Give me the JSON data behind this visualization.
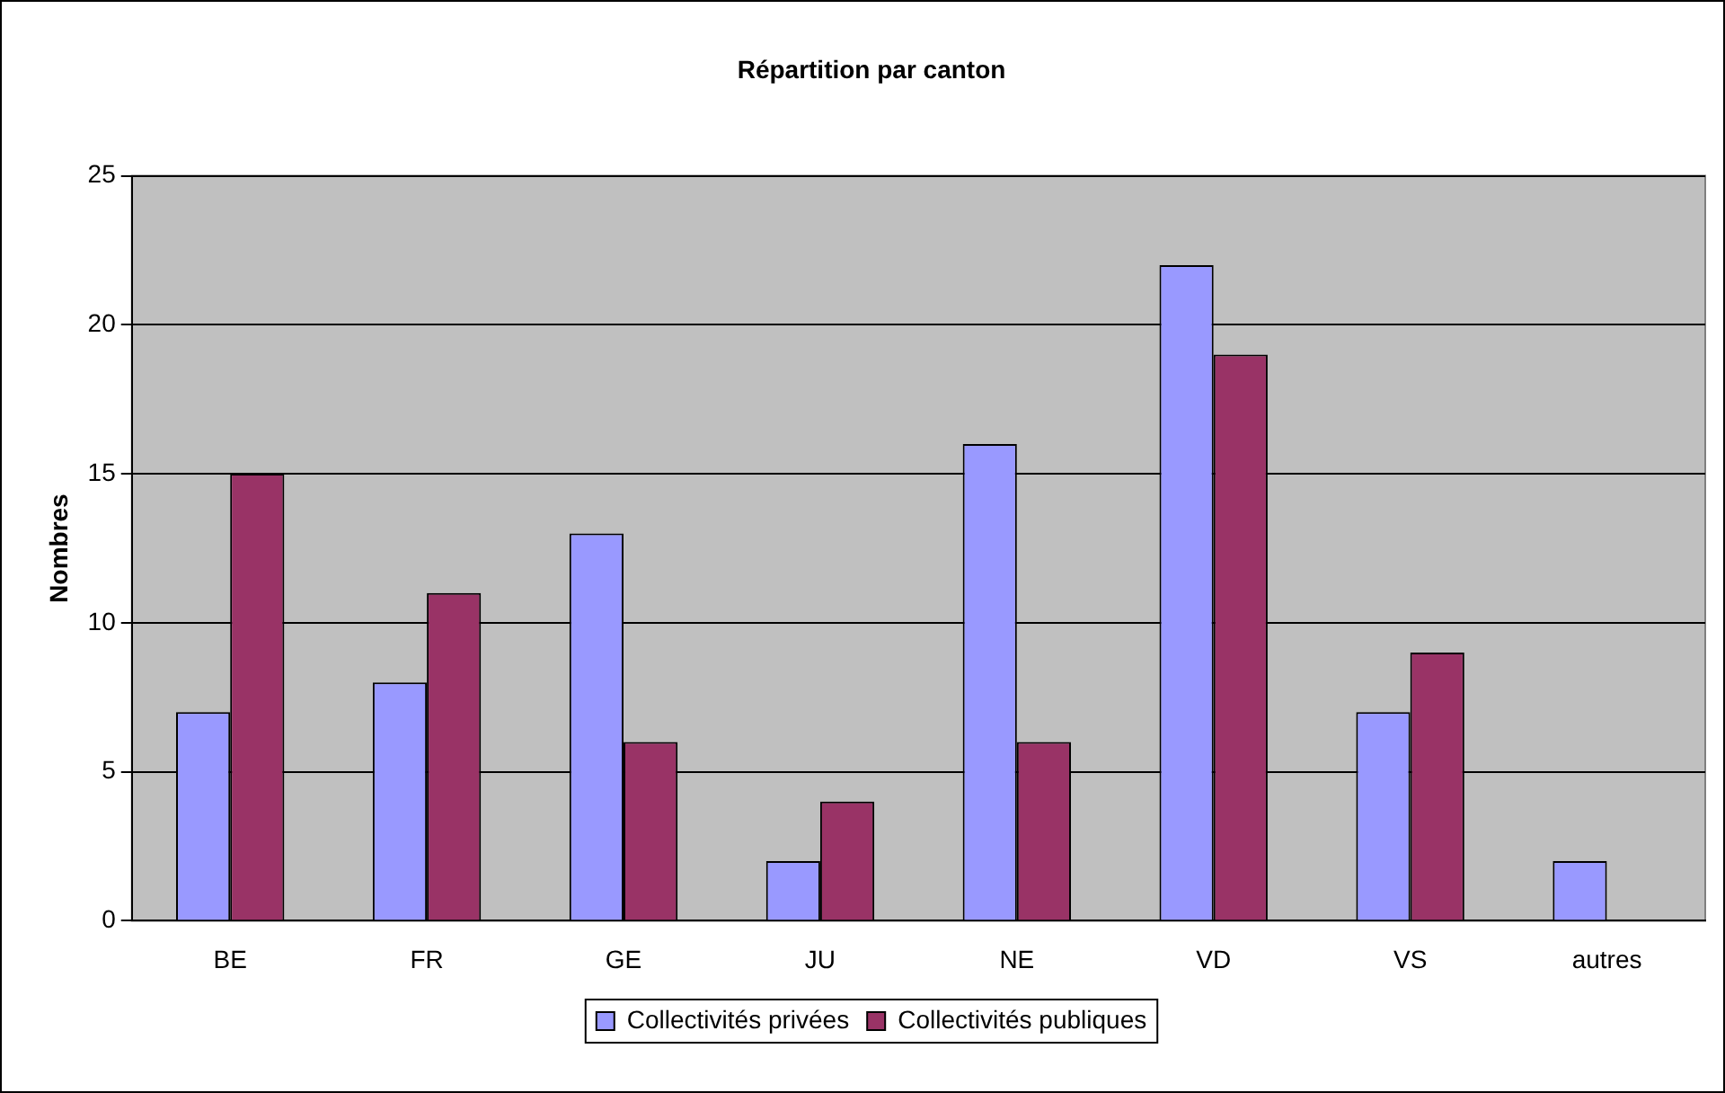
{
  "chart_data": {
    "type": "bar",
    "title": "Répartition par canton",
    "ylabel": "Nombres",
    "categories": [
      "BE",
      "FR",
      "GE",
      "JU",
      "NE",
      "VD",
      "VS",
      "autres"
    ],
    "series": [
      {
        "name": "Collectivités privées",
        "color": "#9999ff",
        "values": [
          7,
          8,
          13,
          2,
          16,
          22,
          7,
          2
        ]
      },
      {
        "name": "Collectivités publiques",
        "color": "#993366",
        "values": [
          15,
          11,
          6,
          4,
          6,
          19,
          9,
          0
        ]
      }
    ],
    "ylim": [
      0,
      25
    ],
    "yticks": [
      0,
      5,
      10,
      15,
      20,
      25
    ],
    "grid": "y",
    "legend": "bottom"
  }
}
